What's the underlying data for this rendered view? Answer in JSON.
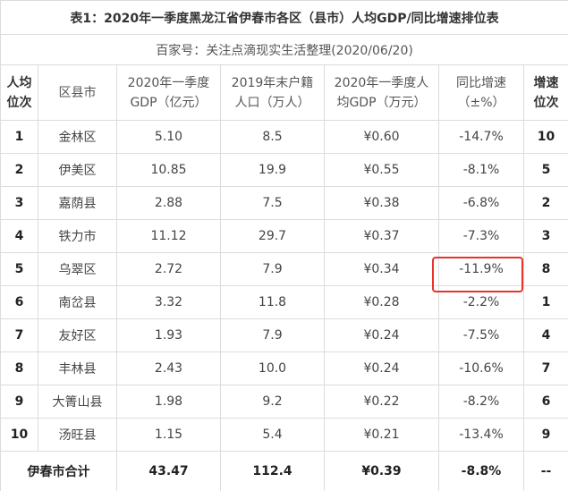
{
  "title": "表1：2020年一季度黑龙江省伊春市各区（县市）人均GDP/同比增速排位表",
  "subtitle": "百家号：关注点滴现实生活整理(2020/06/20)",
  "table": {
    "header": [
      "人均\n位次",
      "区县市",
      "2020年一季度\nGDP（亿元）",
      "2019年末户籍\n人口（万人）",
      "2020年一季度人\n均GDP（万元）",
      "同比增速\n（±%）",
      "增速\n位次"
    ],
    "rows": [
      [
        "1",
        "金林区",
        "5.10",
        "8.5",
        "¥0.60",
        "-14.7%",
        "10"
      ],
      [
        "2",
        "伊美区",
        "10.85",
        "19.9",
        "¥0.55",
        "-8.1%",
        "5"
      ],
      [
        "3",
        "嘉荫县",
        "2.88",
        "7.5",
        "¥0.38",
        "-6.8%",
        "2"
      ],
      [
        "4",
        "铁力市",
        "11.12",
        "29.7",
        "¥0.37",
        "-7.3%",
        "3"
      ],
      [
        "5",
        "乌翠区",
        "2.72",
        "7.9",
        "¥0.34",
        "-11.9%",
        "8"
      ],
      [
        "6",
        "南岔县",
        "3.32",
        "11.8",
        "¥0.28",
        "-2.2%",
        "1"
      ],
      [
        "7",
        "友好区",
        "1.93",
        "7.9",
        "¥0.24",
        "-7.5%",
        "4"
      ],
      [
        "8",
        "丰林县",
        "2.43",
        "10.0",
        "¥0.24",
        "-10.6%",
        "7"
      ],
      [
        "9",
        "大箐山县",
        "1.98",
        "9.2",
        "¥0.22",
        "-8.2%",
        "6"
      ],
      [
        "10",
        "汤旺县",
        "1.15",
        "5.4",
        "¥0.21",
        "-13.4%",
        "9"
      ]
    ],
    "total": [
      "伊春市合计",
      "43.47",
      "112.4",
      "¥0.39",
      "-8.8%",
      "--"
    ]
  }
}
